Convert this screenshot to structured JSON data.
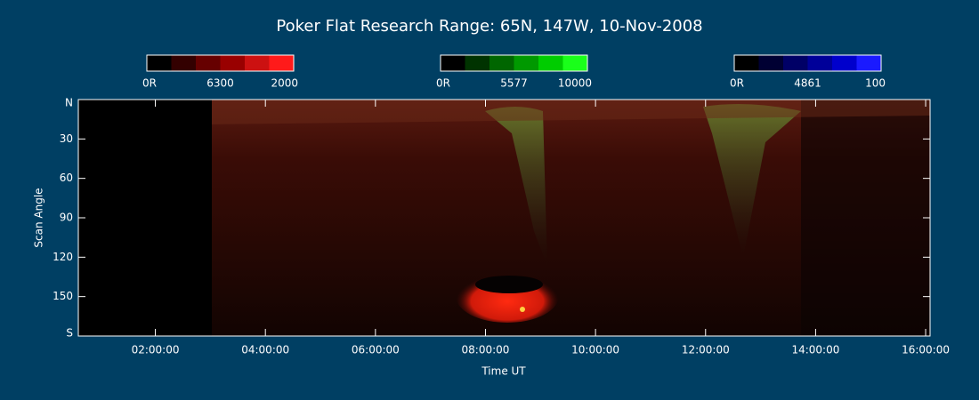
{
  "chart_data": {
    "type": "keogram",
    "title": "Poker Flat Research Range: 65N, 147W, 10-Nov-2008",
    "x_label": "Time UT",
    "y_label": "Scan Angle",
    "xlim": [
      0.6,
      16.08
    ],
    "xticks": [
      {
        "value": 2,
        "label": "02:00:00"
      },
      {
        "value": 4,
        "label": "04:00:00"
      },
      {
        "value": 6,
        "label": "06:00:00"
      },
      {
        "value": 8,
        "label": "08:00:00"
      },
      {
        "value": 10,
        "label": "10:00:00"
      },
      {
        "value": 12,
        "label": "12:00:00"
      },
      {
        "value": 14,
        "label": "14:00:00"
      },
      {
        "value": 16,
        "label": "16:00:00"
      }
    ],
    "ylim": [
      0,
      180
    ],
    "yticks": [
      {
        "value": 0,
        "label": "N"
      },
      30,
      60,
      90,
      120,
      150,
      {
        "value": 180,
        "label": "S"
      }
    ],
    "colorbars": [
      {
        "labels": [
          "0R",
          "6300",
          "2000"
        ],
        "colors": [
          "#000000",
          "#330000",
          "#660000",
          "#990000",
          "#cc1111",
          "#ff1a1a"
        ]
      },
      {
        "labels": [
          "0R",
          "5577",
          "10000"
        ],
        "colors": [
          "#000000",
          "#003300",
          "#006600",
          "#009900",
          "#00cc00",
          "#1aff1a"
        ]
      },
      {
        "labels": [
          "0R",
          "4861",
          "100"
        ],
        "colors": [
          "#000000",
          "#000033",
          "#000066",
          "#000099",
          "#0000cc",
          "#1a1aff"
        ]
      }
    ]
  }
}
